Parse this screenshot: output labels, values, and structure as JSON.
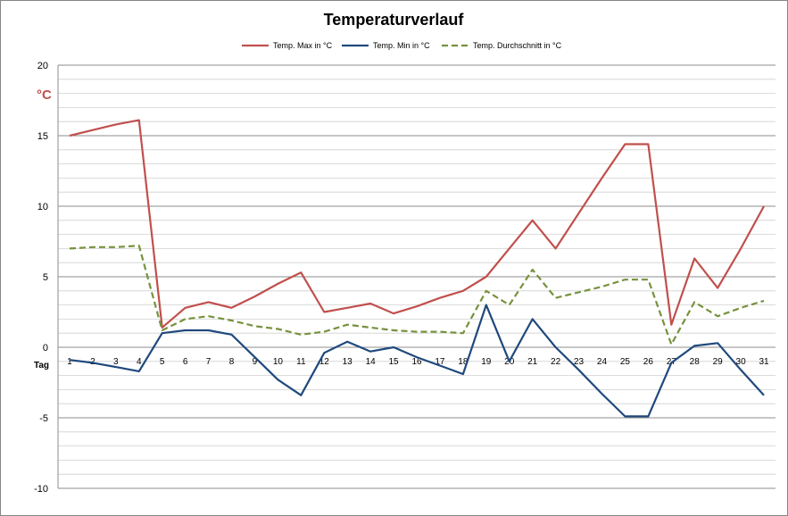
{
  "chart_data": {
    "type": "line",
    "title": "Temperaturverlauf",
    "xlabel": "Tag",
    "ylabel": "°C",
    "ylim": [
      -10,
      20
    ],
    "y_ticks": [
      -10,
      -5,
      0,
      5,
      10,
      15,
      20
    ],
    "grid": true,
    "legend_position": "top",
    "categories": [
      "1",
      "2",
      "3",
      "4",
      "5",
      "6",
      "7",
      "8",
      "9",
      "10",
      "11",
      "12",
      "13",
      "14",
      "15",
      "16",
      "17",
      "18",
      "19",
      "20",
      "21",
      "22",
      "23",
      "24",
      "25",
      "26",
      "27",
      "28",
      "29",
      "30",
      "31"
    ],
    "series": [
      {
        "name": "Temp. Max in °C",
        "color": "#c0504d",
        "dash": false,
        "values": [
          15.0,
          15.4,
          15.8,
          16.1,
          1.4,
          2.8,
          3.2,
          2.8,
          3.6,
          4.5,
          5.3,
          2.5,
          2.8,
          3.1,
          2.4,
          2.9,
          3.5,
          4.0,
          5.0,
          7.0,
          9.0,
          7.0,
          9.5,
          12.0,
          14.4,
          14.4,
          1.6,
          6.3,
          4.2,
          7.0,
          10.0
        ]
      },
      {
        "name": "Temp. Min in °C",
        "color": "#1f497d",
        "dash": false,
        "values": [
          -0.9,
          -1.1,
          -1.4,
          -1.7,
          1.0,
          1.2,
          1.2,
          0.9,
          -0.7,
          -2.3,
          -3.4,
          -0.4,
          0.4,
          -0.3,
          0.0,
          -0.7,
          -1.3,
          -1.9,
          3.0,
          -1.0,
          2.0,
          0.0,
          -1.6,
          -3.3,
          -4.9,
          -4.9,
          -1.1,
          0.1,
          0.3,
          -1.6,
          -3.4
        ]
      },
      {
        "name": "Temp. Durchschnitt in °C",
        "color": "#76923c",
        "dash": true,
        "values": [
          7.0,
          7.1,
          7.1,
          7.2,
          1.2,
          2.0,
          2.2,
          1.9,
          1.5,
          1.3,
          0.9,
          1.1,
          1.6,
          1.4,
          1.2,
          1.1,
          1.1,
          1.0,
          4.0,
          3.0,
          5.5,
          3.5,
          3.9,
          4.3,
          4.8,
          4.8,
          0.2,
          3.2,
          2.2,
          2.8,
          3.3
        ]
      }
    ]
  }
}
